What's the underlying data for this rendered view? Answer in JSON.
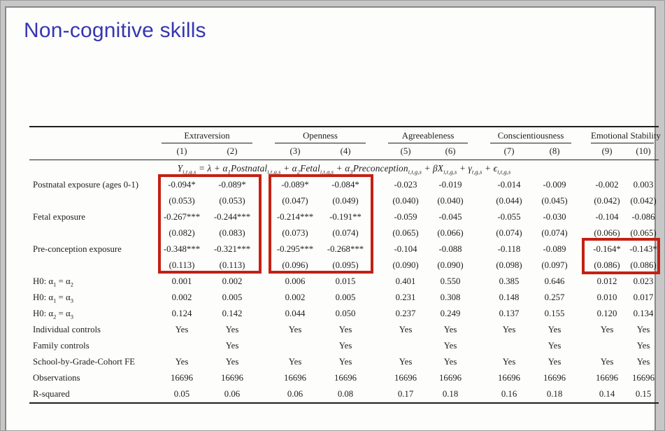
{
  "slide": {
    "title": "Non-cognitive skills"
  },
  "equation": "Y_{i,t,g,s} = λ + α_{1}Postnatal_{i,t,g,s} + α_{2}Fetal_{i,t,g,s} + α_{3}Preconception_{i,t,g,s} + βX_{i,t,g,s} + γ_{t,g,s} + ϵ_{i,t,g,s}",
  "table": {
    "groups": [
      {
        "label": "Extraversion",
        "cols": [
          "(1)",
          "(2)"
        ]
      },
      {
        "label": "Openness",
        "cols": [
          "(3)",
          "(4)"
        ]
      },
      {
        "label": "Agreeableness",
        "cols": [
          "(5)",
          "(6)"
        ]
      },
      {
        "label": "Conscientiousness",
        "cols": [
          "(7)",
          "(8)"
        ]
      },
      {
        "label": "Emotional Stability",
        "cols": [
          "(9)",
          "(10)"
        ]
      }
    ],
    "rows": [
      {
        "label": "Postnatal exposure (ages 0-1)",
        "values": [
          "-0.094*",
          "-0.089*",
          "-0.089*",
          "-0.084*",
          "-0.023",
          "-0.019",
          "-0.014",
          "-0.009",
          "-0.002",
          "0.003"
        ]
      },
      {
        "label": "",
        "values": [
          "(0.053)",
          "(0.053)",
          "(0.047)",
          "(0.049)",
          "(0.040)",
          "(0.040)",
          "(0.044)",
          "(0.045)",
          "(0.042)",
          "(0.042)"
        ]
      },
      {
        "label": "Fetal exposure",
        "values": [
          "-0.267***",
          "-0.244***",
          "-0.214***",
          "-0.191**",
          "-0.059",
          "-0.045",
          "-0.055",
          "-0.030",
          "-0.104",
          "-0.086"
        ]
      },
      {
        "label": "",
        "values": [
          "(0.082)",
          "(0.083)",
          "(0.073)",
          "(0.074)",
          "(0.065)",
          "(0.066)",
          "(0.074)",
          "(0.074)",
          "(0.066)",
          "(0.065)"
        ]
      },
      {
        "label": "Pre-conception exposure",
        "values": [
          "-0.348***",
          "-0.321***",
          "-0.295***",
          "-0.268***",
          "-0.104",
          "-0.088",
          "-0.118",
          "-0.089",
          "-0.164*",
          "-0.143*"
        ]
      },
      {
        "label": "",
        "values": [
          "(0.113)",
          "(0.113)",
          "(0.096)",
          "(0.095)",
          "(0.090)",
          "(0.090)",
          "(0.098)",
          "(0.097)",
          "(0.086)",
          "(0.086)"
        ]
      },
      {
        "label": "H0:  α_{1} = α_{2}",
        "values": [
          "0.001",
          "0.002",
          "0.006",
          "0.015",
          "0.401",
          "0.550",
          "0.385",
          "0.646",
          "0.012",
          "0.023"
        ]
      },
      {
        "label": "H0:  α_{1} = α_{3}",
        "values": [
          "0.002",
          "0.005",
          "0.002",
          "0.005",
          "0.231",
          "0.308",
          "0.148",
          "0.257",
          "0.010",
          "0.017"
        ]
      },
      {
        "label": "H0:  α_{2} = α_{3}",
        "values": [
          "0.124",
          "0.142",
          "0.044",
          "0.050",
          "0.237",
          "0.249",
          "0.137",
          "0.155",
          "0.120",
          "0.134"
        ]
      },
      {
        "label": "Individual controls",
        "values": [
          "Yes",
          "Yes",
          "Yes",
          "Yes",
          "Yes",
          "Yes",
          "Yes",
          "Yes",
          "Yes",
          "Yes"
        ]
      },
      {
        "label": "Family controls",
        "values": [
          "",
          "Yes",
          "",
          "Yes",
          "",
          "Yes",
          "",
          "Yes",
          "",
          "Yes"
        ]
      },
      {
        "label": "School-by-Grade-Cohort FE",
        "values": [
          "Yes",
          "Yes",
          "Yes",
          "Yes",
          "Yes",
          "Yes",
          "Yes",
          "Yes",
          "Yes",
          "Yes"
        ]
      },
      {
        "label": "Observations",
        "values": [
          "16696",
          "16696",
          "16696",
          "16696",
          "16696",
          "16696",
          "16696",
          "16696",
          "16696",
          "16696"
        ]
      },
      {
        "label": "R-squared",
        "values": [
          "0.05",
          "0.06",
          "0.06",
          "0.08",
          "0.17",
          "0.18",
          "0.16",
          "0.18",
          "0.14",
          "0.15"
        ]
      }
    ]
  },
  "highlights": [
    {
      "name": "extraversion-coefficients",
      "target": "Extraversion cols (1)-(2), exposure coefficient rows"
    },
    {
      "name": "openness-coefficients",
      "target": "Openness cols (3)-(4), exposure coefficient rows"
    },
    {
      "name": "emotional-stability-preconception",
      "target": "Emotional Stability cols (9)-(10), pre-conception row"
    }
  ],
  "colors": {
    "title": "#3636b2",
    "highlight": "#c32113",
    "rule": "#1f1f1f"
  }
}
